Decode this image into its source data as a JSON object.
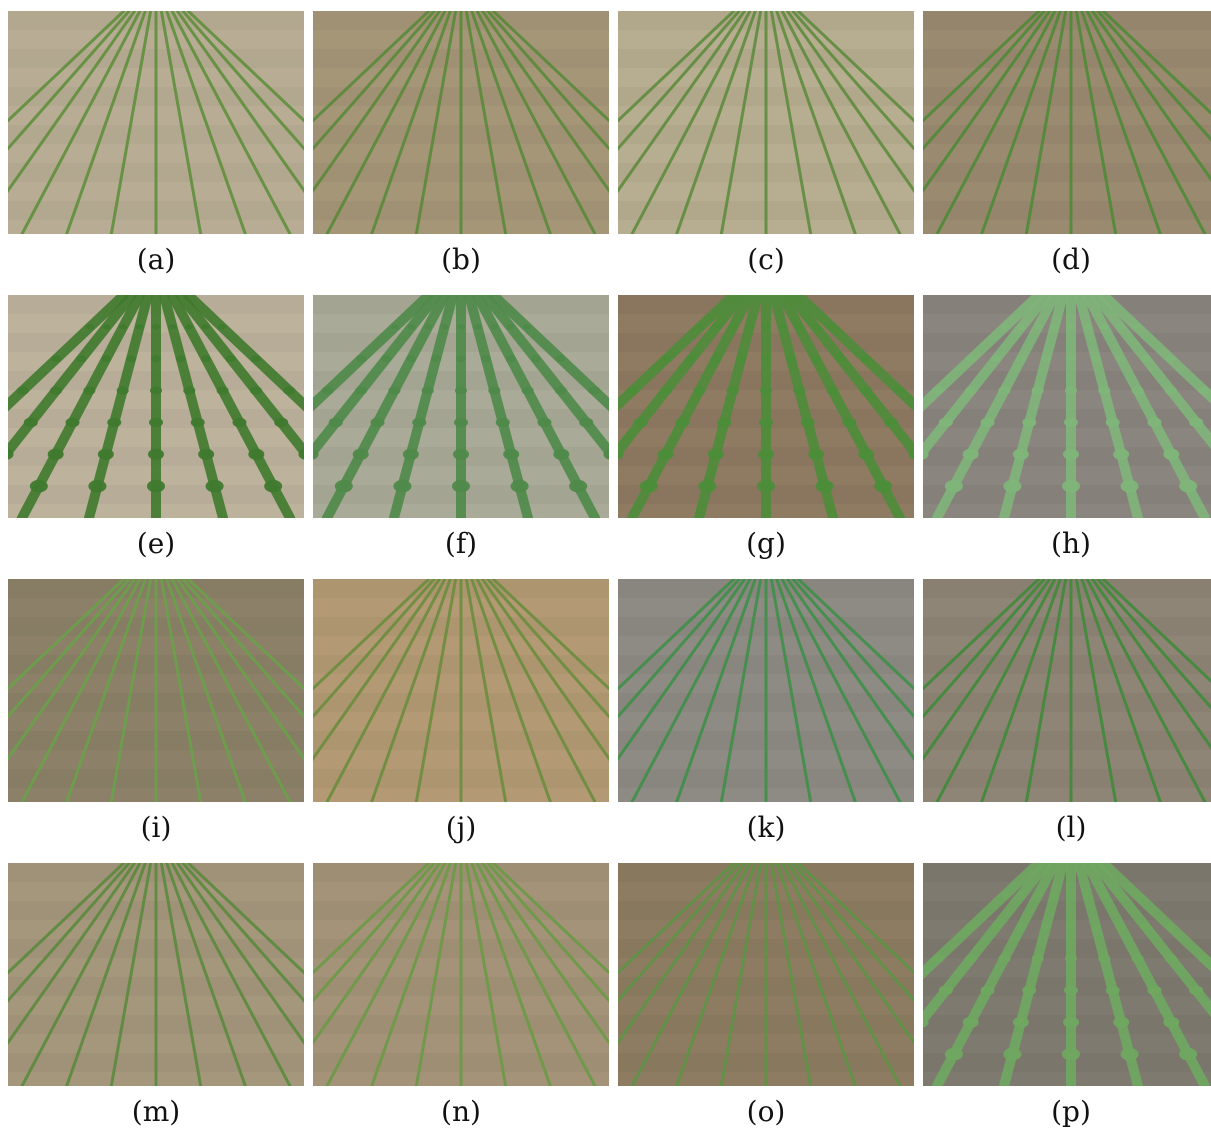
{
  "figure": {
    "panels": [
      {
        "label": "(a)",
        "crop": "corn",
        "soil": "#b8ad94",
        "plant": "#5f8f3c"
      },
      {
        "label": "(b)",
        "crop": "corn",
        "soil": "#a69678",
        "plant": "#5a8a3a"
      },
      {
        "label": "(c)",
        "crop": "corn",
        "soil": "#b7ad90",
        "plant": "#5f8c3e"
      },
      {
        "label": "(d)",
        "crop": "corn",
        "soil": "#9a8a70",
        "plant": "#4f8a36"
      },
      {
        "label": "(e)",
        "crop": "bean",
        "soil": "#bdb29c",
        "plant": "#3f7a2e"
      },
      {
        "label": "(f)",
        "crop": "bean",
        "soil": "#a9aa97",
        "plant": "#4f8a4a"
      },
      {
        "label": "(g)",
        "crop": "bean",
        "soil": "#8f7a62",
        "plant": "#4c8d3a"
      },
      {
        "label": "(h)",
        "crop": "bean",
        "soil": "#8a857e",
        "plant": "#7fb57a"
      },
      {
        "label": "(i)",
        "crop": "corn",
        "soil": "#8c8068",
        "plant": "#6aa04a"
      },
      {
        "label": "(j)",
        "crop": "corn",
        "soil": "#b39a74",
        "plant": "#6b8d3e"
      },
      {
        "label": "(k)",
        "crop": "corn",
        "soil": "#8e8a84",
        "plant": "#3f8f48"
      },
      {
        "label": "(l)",
        "crop": "corn",
        "soil": "#8f8576",
        "plant": "#3f8a3a"
      },
      {
        "label": "(m)",
        "crop": "corn",
        "soil": "#a5977c",
        "plant": "#5b8a3d"
      },
      {
        "label": "(n)",
        "crop": "corn",
        "soil": "#a49378",
        "plant": "#6a9a46"
      },
      {
        "label": "(o)",
        "crop": "corn",
        "soil": "#8d7c62",
        "plant": "#5d9445"
      },
      {
        "label": "(p)",
        "crop": "bean",
        "soil": "#7f7a70",
        "plant": "#6fa860"
      }
    ]
  }
}
